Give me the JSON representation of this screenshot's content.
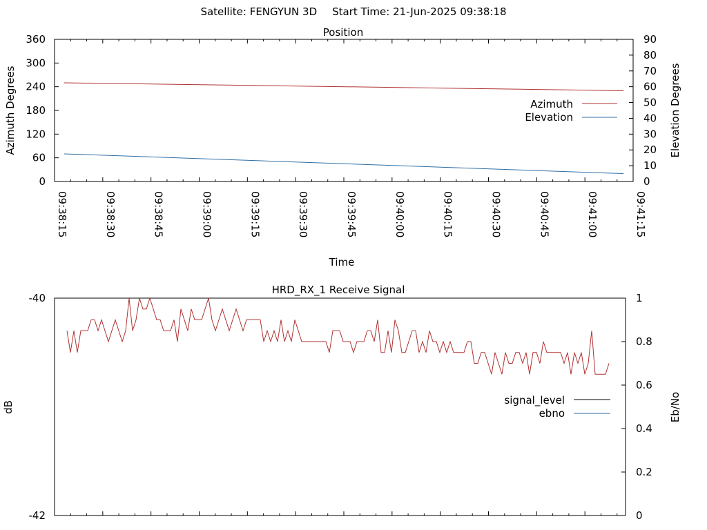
{
  "header": {
    "satellite_label": "Satellite: FENGYUN 3D",
    "start_time_label": "Start Time: 21-Jun-2025 09:38:18"
  },
  "chart_data": [
    {
      "type": "line",
      "title": "Position",
      "xlabel": "Time",
      "ylabel": "Azimuth Degrees",
      "y2label": "Elevation Degrees",
      "x_ticks": [
        "09:38:15",
        "09:38:30",
        "09:38:45",
        "09:39:00",
        "09:39:15",
        "09:39:30",
        "09:39:45",
        "09:40:00",
        "09:40:15",
        "09:40:30",
        "09:40:45",
        "09:41:00",
        "09:41:15"
      ],
      "x_range": [
        "09:38:15",
        "09:41:15"
      ],
      "ylim": [
        0,
        360
      ],
      "y_ticks": [
        0,
        60,
        120,
        180,
        240,
        300,
        360
      ],
      "y2lim": [
        0,
        90
      ],
      "y2_ticks": [
        0,
        10,
        20,
        30,
        40,
        50,
        60,
        70,
        80,
        90
      ],
      "legend_position": "right",
      "series": [
        {
          "name": "Azimuth",
          "axis": "y",
          "color": "#b03030",
          "x": [
            "09:38:18",
            "09:41:12"
          ],
          "values": [
            250,
            230
          ]
        },
        {
          "name": "Elevation",
          "axis": "y2",
          "color": "#2e6da4",
          "x": [
            "09:38:18",
            "09:41:12"
          ],
          "values": [
            17.5,
            5
          ]
        }
      ]
    },
    {
      "type": "line",
      "title": "HRD_RX_1 Receive Signal",
      "ylabel": "dB",
      "y2label": "Eb/No",
      "ylim": [
        -42,
        -40
      ],
      "y_ticks": [
        -42,
        -40
      ],
      "y2lim": [
        0,
        1
      ],
      "y2_ticks": [
        "0",
        "0.2",
        "0.4",
        "0.6",
        "0.8",
        "1"
      ],
      "legend_position": "right",
      "series": [
        {
          "name": "signal_level",
          "axis": "y",
          "color": "#000000",
          "values": []
        },
        {
          "name": "ebno",
          "axis": "y2",
          "color": "#2e6da4",
          "values": []
        },
        {
          "axis": "y2",
          "color": "#b03030",
          "values": [
            0.85,
            0.75,
            0.85,
            0.75,
            0.85,
            0.85,
            0.85,
            0.9,
            0.9,
            0.85,
            0.9,
            0.85,
            0.8,
            0.85,
            0.9,
            0.85,
            0.8,
            0.85,
            1.0,
            0.85,
            0.9,
            1.0,
            0.95,
            0.95,
            1.0,
            0.95,
            0.9,
            0.9,
            0.85,
            0.85,
            0.85,
            0.9,
            0.8,
            0.95,
            0.9,
            0.85,
            0.95,
            0.9,
            0.9,
            0.9,
            0.95,
            1.0,
            0.9,
            0.85,
            0.9,
            0.95,
            0.9,
            0.85,
            0.9,
            0.95,
            0.9,
            0.85,
            0.9,
            0.9,
            0.9,
            0.9,
            0.9,
            0.8,
            0.85,
            0.8,
            0.85,
            0.8,
            0.9,
            0.8,
            0.85,
            0.8,
            0.9,
            0.85,
            0.8,
            0.8,
            0.8,
            0.8,
            0.8,
            0.8,
            0.8,
            0.8,
            0.75,
            0.85,
            0.85,
            0.85,
            0.8,
            0.8,
            0.8,
            0.75,
            0.8,
            0.8,
            0.8,
            0.85,
            0.85,
            0.8,
            0.9,
            0.75,
            0.75,
            0.85,
            0.75,
            0.9,
            0.85,
            0.75,
            0.75,
            0.8,
            0.85,
            0.85,
            0.75,
            0.8,
            0.75,
            0.85,
            0.8,
            0.8,
            0.75,
            0.8,
            0.75,
            0.8,
            0.75,
            0.75,
            0.75,
            0.75,
            0.8,
            0.8,
            0.7,
            0.7,
            0.75,
            0.75,
            0.7,
            0.65,
            0.75,
            0.7,
            0.65,
            0.75,
            0.7,
            0.7,
            0.75,
            0.75,
            0.7,
            0.75,
            0.65,
            0.75,
            0.75,
            0.7,
            0.8,
            0.75,
            0.75,
            0.75,
            0.75,
            0.75,
            0.7,
            0.75,
            0.65,
            0.75,
            0.7,
            0.75,
            0.65,
            0.7,
            0.85,
            0.65,
            0.65,
            0.65,
            0.65,
            0.7
          ]
        }
      ]
    }
  ]
}
